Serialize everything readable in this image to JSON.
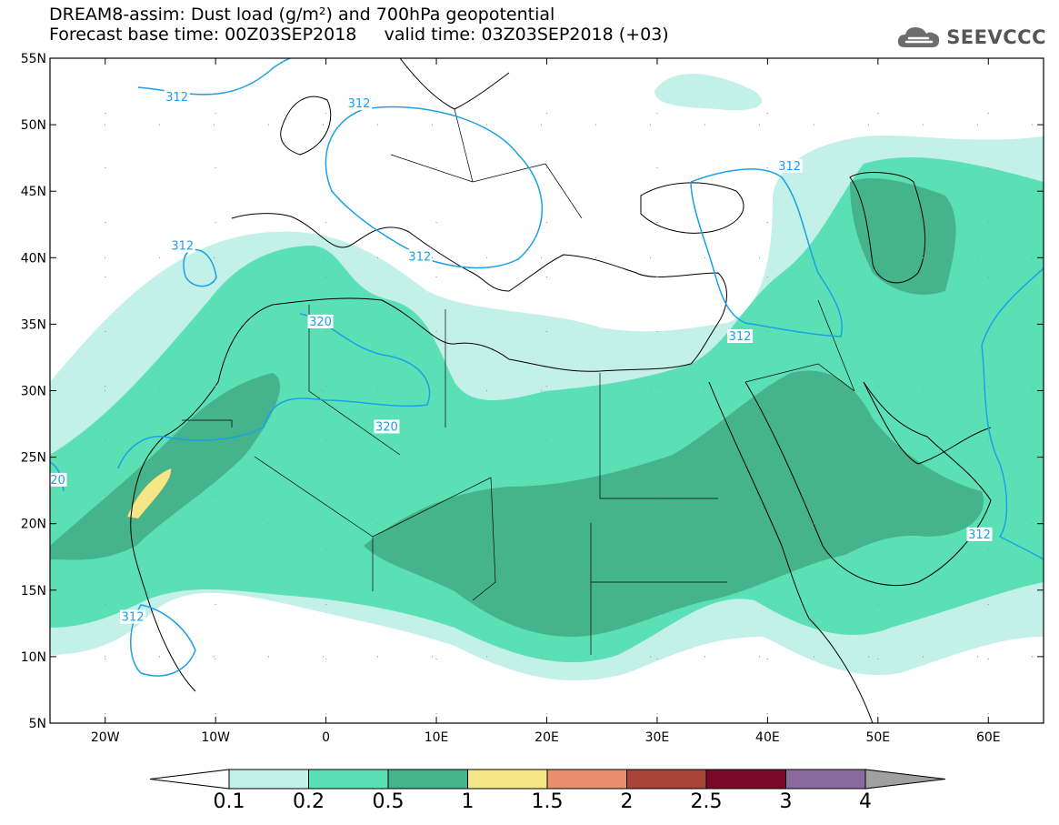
{
  "header": {
    "title_line1": "DREAM8-assim: Dust load (g/m²) and 700hPa geopotential",
    "title_line2": "Forecast base time: 00Z03SEP2018     valid time: 03Z03SEP2018 (+03)",
    "logo_text": "SEEVCCC",
    "logo_icon": "cloud-icon"
  },
  "map": {
    "lon_range": [
      -25,
      65
    ],
    "lat_range": [
      5,
      55
    ],
    "lat_ticks": [
      "55N",
      "50N",
      "45N",
      "40N",
      "35N",
      "30N",
      "25N",
      "20N",
      "15N",
      "10N",
      "5N"
    ],
    "lon_ticks": [
      "20W",
      "10W",
      "0",
      "10E",
      "20E",
      "30E",
      "40E",
      "50E",
      "60E"
    ],
    "contour_color": "#1aa0e8",
    "contour_labels": [
      {
        "text": "312",
        "lon": -13.5,
        "lat": 52.0
      },
      {
        "text": "312",
        "lon": 3.0,
        "lat": 51.5
      },
      {
        "text": "312",
        "lon": 42.0,
        "lat": 46.8
      },
      {
        "text": "312",
        "lon": -13.0,
        "lat": 40.8
      },
      {
        "text": "312",
        "lon": 8.5,
        "lat": 40.0
      },
      {
        "text": "320",
        "lon": -0.5,
        "lat": 35.1
      },
      {
        "text": "312",
        "lon": 37.5,
        "lat": 34.0
      },
      {
        "text": "320",
        "lon": 5.5,
        "lat": 27.2
      },
      {
        "text": "20",
        "lon": -24.3,
        "lat": 23.2
      },
      {
        "text": "312",
        "lon": 59.2,
        "lat": 19.1
      },
      {
        "text": "312",
        "lon": -17.5,
        "lat": 12.9
      }
    ]
  },
  "colorbar": {
    "labels": [
      "0.1",
      "0.2",
      "0.5",
      "1",
      "1.5",
      "2",
      "2.5",
      "3",
      "4"
    ],
    "colors": [
      "#c4f0ea",
      "#5be0b6",
      "#45b38c",
      "#f5e687",
      "#eb8e6b",
      "#a8453a",
      "#7a0a2a",
      "#8a6a9e"
    ],
    "under_color": "#ffffff",
    "over_color": "#a0a0a0"
  }
}
